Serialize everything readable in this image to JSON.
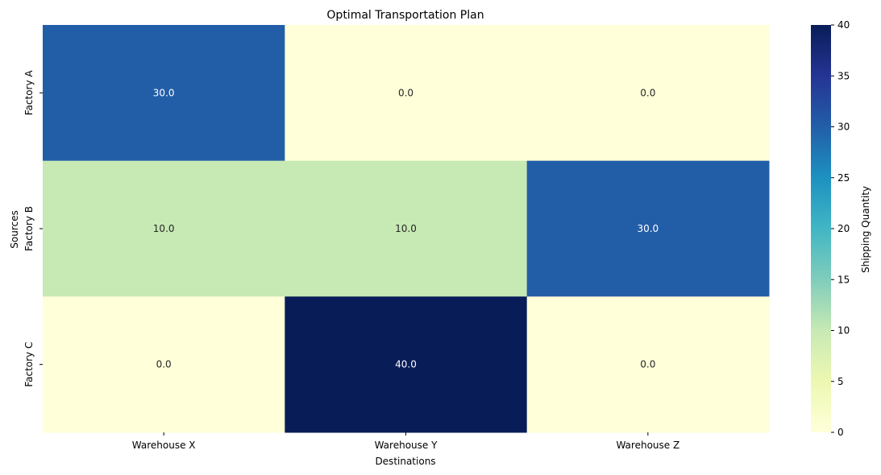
{
  "chart_data": {
    "type": "heatmap",
    "title": "Optimal Transportation Plan",
    "xlabel": "Destinations",
    "ylabel": "Sources",
    "x_categories": [
      "Warehouse X",
      "Warehouse Y",
      "Warehouse Z"
    ],
    "y_categories": [
      "Factory A",
      "Factory B",
      "Factory C"
    ],
    "values": [
      [
        30.0,
        0.0,
        0.0
      ],
      [
        10.0,
        10.0,
        30.0
      ],
      [
        0.0,
        40.0,
        0.0
      ]
    ],
    "cell_labels": [
      [
        "30.0",
        "0.0",
        "0.0"
      ],
      [
        "10.0",
        "10.0",
        "30.0"
      ],
      [
        "0.0",
        "40.0",
        "0.0"
      ]
    ],
    "colormap": "YlGnBu",
    "vmin": 0,
    "vmax": 40,
    "colorbar": {
      "label": "Shipping Quantity",
      "ticks": [
        0,
        5,
        10,
        15,
        20,
        25,
        30,
        35,
        40
      ]
    }
  }
}
